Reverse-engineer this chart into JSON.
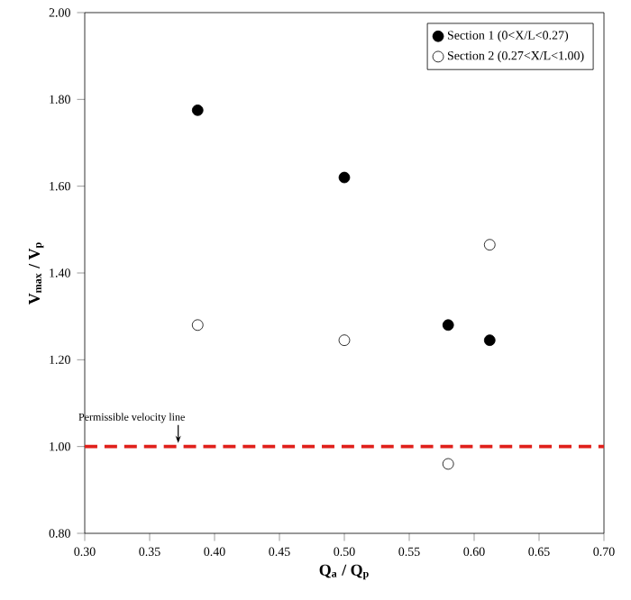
{
  "chart_data": {
    "type": "scatter",
    "xlabel": "Q$_{a}$ / Q$_{p}$",
    "ylabel": "V$_{max}$ / V$_{p}$",
    "xlim": [
      0.3,
      0.7
    ],
    "ylim": [
      0.8,
      2.0
    ],
    "xticks": [
      {
        "value": 0.3,
        "label": "0.30"
      },
      {
        "value": 0.35,
        "label": "0.35"
      },
      {
        "value": 0.4,
        "label": "0.40"
      },
      {
        "value": 0.45,
        "label": "0.45"
      },
      {
        "value": 0.5,
        "label": "0.50"
      },
      {
        "value": 0.55,
        "label": "0.55"
      },
      {
        "value": 0.6,
        "label": "0.60"
      },
      {
        "value": 0.65,
        "label": "0.65"
      },
      {
        "value": 0.7,
        "label": "0.70"
      }
    ],
    "yticks": [
      {
        "value": 0.8,
        "label": "0.80"
      },
      {
        "value": 1.0,
        "label": "1.00"
      },
      {
        "value": 1.2,
        "label": "1.20"
      },
      {
        "value": 1.4,
        "label": "1.40"
      },
      {
        "value": 1.6,
        "label": "1.60"
      },
      {
        "value": 1.8,
        "label": "1.80"
      },
      {
        "value": 2.0,
        "label": "2.00"
      }
    ],
    "series": [
      {
        "name": "Section 1 (0<X/L<0.27)",
        "color": "#000000",
        "x": [
          0.387,
          0.5,
          0.58,
          0.612
        ],
        "values": [
          1.775,
          1.62,
          1.28,
          1.245
        ]
      },
      {
        "name": "Section 2 (0.27<X/L<1.00)",
        "color": "#ffffff",
        "x": [
          0.387,
          0.5,
          0.58,
          0.612
        ],
        "values": [
          1.28,
          1.245,
          0.96,
          1.465
        ]
      }
    ],
    "ref_lines": [
      {
        "axis": "y",
        "value": 1.0,
        "label": "Permissible velocity line",
        "color": "#e0201b",
        "line_style": "dashed"
      }
    ],
    "marker": "circle",
    "legend": "top right",
    "grid": false
  }
}
